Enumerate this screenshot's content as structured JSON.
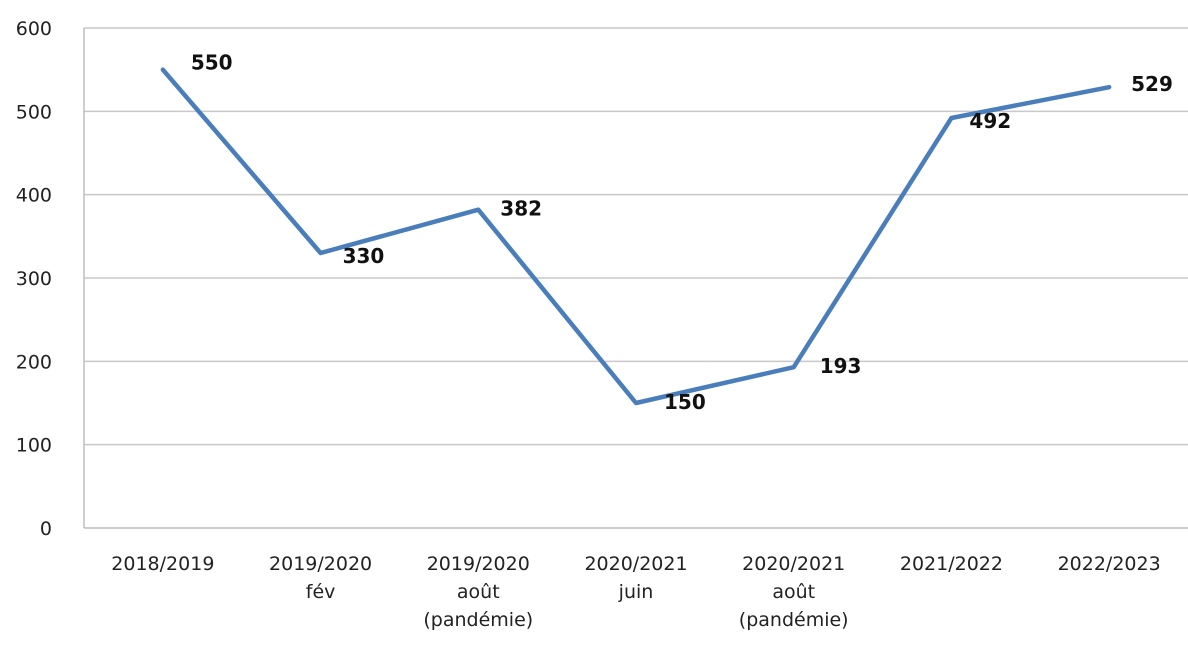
{
  "chart_data": {
    "type": "line",
    "title": "",
    "xlabel": "",
    "ylabel": "",
    "ylim": [
      0,
      600
    ],
    "yticks": [
      0,
      100,
      200,
      300,
      400,
      500,
      600
    ],
    "grid": true,
    "legend": "none",
    "categories": [
      [
        "2018/2019"
      ],
      [
        "2019/2020",
        "fév"
      ],
      [
        "2019/2020",
        "août",
        "(pandémie)"
      ],
      [
        "2020/2021",
        "juin"
      ],
      [
        "2020/2021",
        "août",
        "(pandémie)"
      ],
      [
        "2021/2022"
      ],
      [
        "2022/2023"
      ]
    ],
    "series": [
      {
        "values": [
          550,
          330,
          382,
          150,
          193,
          492,
          529
        ],
        "color": "#4A7EBB"
      }
    ]
  }
}
